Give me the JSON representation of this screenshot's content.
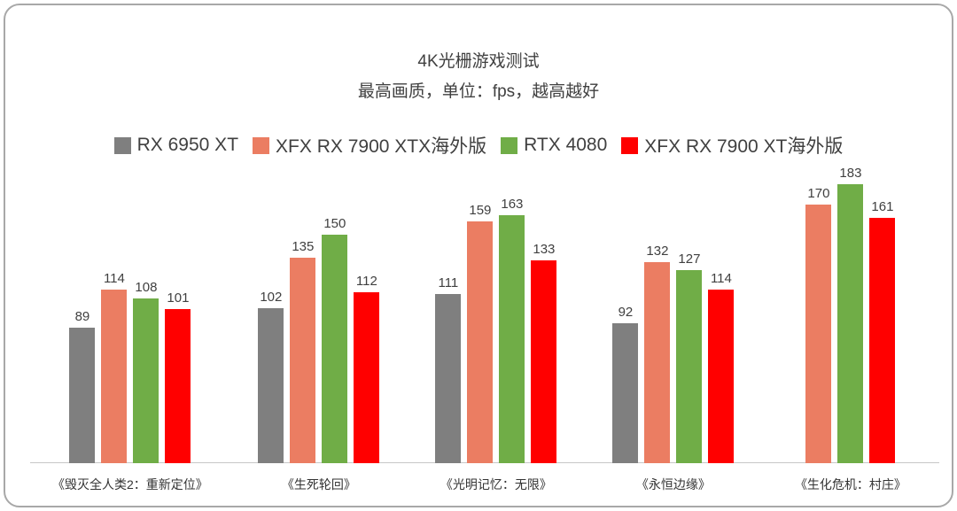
{
  "chart_data": {
    "type": "bar",
    "title": "4K光栅游戏测试",
    "subtitle": "最高画质，单位：fps，越高越好",
    "unit": "fps",
    "higher_is_better": true,
    "legend_position": "top",
    "grid": false,
    "ylim": [
      0,
      190
    ],
    "categories": [
      "《毁灭全人类2：重新定位》",
      "《生死轮回》",
      "《光明记忆：无限》",
      "《永恒边缘》",
      "《生化危机：村庄》"
    ],
    "series": [
      {
        "name": "RX 6950 XT",
        "color": "#7F7F7F",
        "values": [
          89,
          102,
          111,
          92,
          null
        ]
      },
      {
        "name": "XFX RX 7900 XTX海外版",
        "color": "#EB7D62",
        "values": [
          114,
          135,
          159,
          132,
          170
        ]
      },
      {
        "name": "RTX 4080",
        "color": "#70AD47",
        "values": [
          108,
          150,
          163,
          127,
          183
        ]
      },
      {
        "name": "XFX RX 7900 XT海外版",
        "color": "#FF0000",
        "values": [
          101,
          112,
          133,
          114,
          161
        ]
      }
    ]
  }
}
